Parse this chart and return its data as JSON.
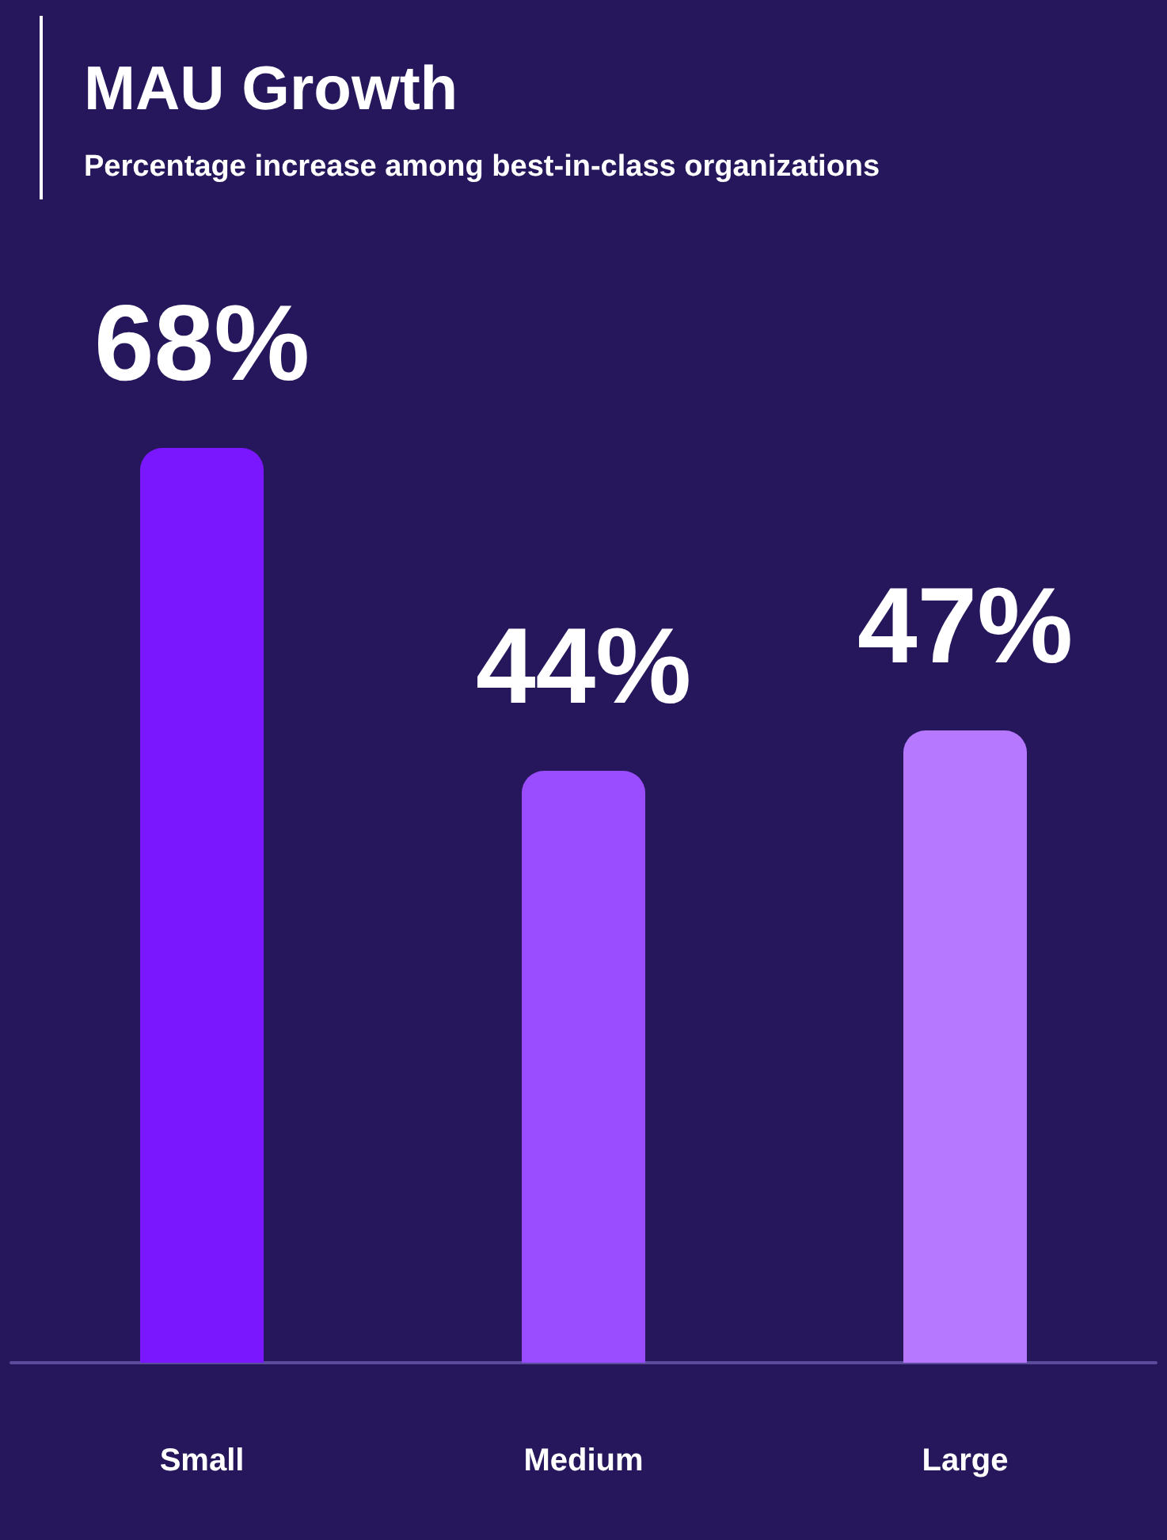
{
  "chart_data": {
    "type": "bar",
    "title": "MAU Growth",
    "subtitle": "Percentage increase among best-in-class organizations",
    "categories": [
      "Small",
      "Medium",
      "Large"
    ],
    "values": [
      68,
      44,
      47
    ],
    "colors": [
      "#7b17ff",
      "#9a4cff",
      "#b578ff"
    ],
    "value_labels": [
      "68%",
      "44%",
      "47%"
    ],
    "tick_labels": "x",
    "grid": false
  }
}
